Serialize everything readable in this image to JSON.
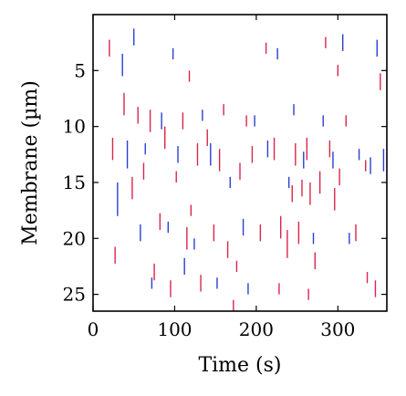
{
  "chart_data": {
    "type": "scatter",
    "title": "",
    "xlabel": "Time (s)",
    "ylabel": "Membrane (µm)",
    "xlim": [
      0,
      360
    ],
    "ylim": [
      26.5,
      0
    ],
    "x_ticks": [
      0,
      100,
      200,
      300
    ],
    "y_ticks": [
      5,
      10,
      15,
      20,
      25
    ],
    "grid": false,
    "legend": "none",
    "colors": {
      "red": "#d9254a",
      "blue": "#2b3fd1",
      "axis": "#000000",
      "background": "#ffffff"
    },
    "series": [
      {
        "color_key": "red",
        "points": [
          [
            20,
            3.0,
            1.5
          ],
          [
            24,
            12.0,
            2.0
          ],
          [
            27,
            21.5,
            1.5
          ],
          [
            38,
            8.0,
            2.0
          ],
          [
            48,
            15.5,
            2.0
          ],
          [
            55,
            9.0,
            1.5
          ],
          [
            62,
            14.0,
            1.5
          ],
          [
            70,
            9.5,
            2.0
          ],
          [
            75,
            23.0,
            1.5
          ],
          [
            82,
            18.5,
            1.5
          ],
          [
            88,
            11.0,
            2.0
          ],
          [
            95,
            24.5,
            1.5
          ],
          [
            102,
            14.5,
            1.0
          ],
          [
            110,
            9.5,
            1.5
          ],
          [
            115,
            20.0,
            2.0
          ],
          [
            120,
            17.5,
            1.0
          ],
          [
            128,
            12.5,
            2.0
          ],
          [
            132,
            24.0,
            1.5
          ],
          [
            140,
            11.0,
            1.5
          ],
          [
            148,
            19.5,
            1.5
          ],
          [
            155,
            13.0,
            2.0
          ],
          [
            160,
            8.5,
            1.0
          ],
          [
            165,
            21.0,
            1.5
          ],
          [
            172,
            26.0,
            1.0
          ],
          [
            180,
            14.0,
            1.5
          ],
          [
            188,
            9.5,
            1.0
          ],
          [
            195,
            12.5,
            1.5
          ],
          [
            205,
            19.5,
            1.5
          ],
          [
            212,
            3.0,
            1.0
          ],
          [
            222,
            12.0,
            2.0
          ],
          [
            230,
            19.0,
            2.0
          ],
          [
            238,
            20.5,
            2.5
          ],
          [
            244,
            16.0,
            1.5
          ],
          [
            248,
            12.5,
            2.0
          ],
          [
            252,
            19.5,
            2.0
          ],
          [
            256,
            15.5,
            1.5
          ],
          [
            262,
            12.0,
            2.0
          ],
          [
            266,
            16.0,
            2.0
          ],
          [
            272,
            22.0,
            1.5
          ],
          [
            278,
            15.0,
            2.0
          ],
          [
            285,
            2.5,
            1.0
          ],
          [
            290,
            12.0,
            1.5
          ],
          [
            296,
            16.5,
            2.0
          ],
          [
            302,
            14.5,
            1.5
          ],
          [
            310,
            9.5,
            1.0
          ],
          [
            322,
            19.5,
            1.5
          ],
          [
            334,
            13.5,
            1.0
          ],
          [
            346,
            24.5,
            1.5
          ],
          [
            352,
            6.0,
            1.5
          ],
          [
            228,
            24.5,
            1.0
          ],
          [
            176,
            22.5,
            1.0
          ],
          [
            118,
            5.5,
            1.0
          ],
          [
            300,
            5.0,
            1.0
          ],
          [
            336,
            23.5,
            1.0
          ],
          [
            264,
            25.0,
            1.0
          ]
        ]
      },
      {
        "color_key": "blue",
        "points": [
          [
            30,
            16.5,
            3.0
          ],
          [
            36,
            4.5,
            2.0
          ],
          [
            42,
            12.5,
            2.5
          ],
          [
            50,
            2.0,
            1.5
          ],
          [
            58,
            19.5,
            1.5
          ],
          [
            64,
            12.0,
            1.0
          ],
          [
            72,
            24.0,
            1.0
          ],
          [
            84,
            9.5,
            1.5
          ],
          [
            92,
            19.0,
            1.0
          ],
          [
            104,
            12.5,
            1.5
          ],
          [
            112,
            22.5,
            1.5
          ],
          [
            124,
            20.5,
            1.0
          ],
          [
            134,
            9.0,
            1.0
          ],
          [
            144,
            12.5,
            2.0
          ],
          [
            152,
            24.0,
            1.0
          ],
          [
            168,
            15.0,
            1.0
          ],
          [
            184,
            19.0,
            1.5
          ],
          [
            198,
            9.5,
            1.0
          ],
          [
            214,
            12.0,
            1.5
          ],
          [
            226,
            3.5,
            1.0
          ],
          [
            240,
            15.0,
            1.0
          ],
          [
            258,
            13.0,
            1.5
          ],
          [
            270,
            20.0,
            1.0
          ],
          [
            282,
            9.5,
            1.0
          ],
          [
            294,
            13.0,
            1.5
          ],
          [
            306,
            2.5,
            1.5
          ],
          [
            314,
            20.0,
            1.0
          ],
          [
            326,
            12.5,
            1.0
          ],
          [
            340,
            13.5,
            1.5
          ],
          [
            348,
            3.0,
            1.5
          ],
          [
            356,
            13.0,
            2.0
          ],
          [
            246,
            8.5,
            1.0
          ],
          [
            190,
            24.5,
            1.0
          ],
          [
            98,
            3.5,
            1.0
          ]
        ]
      }
    ]
  }
}
